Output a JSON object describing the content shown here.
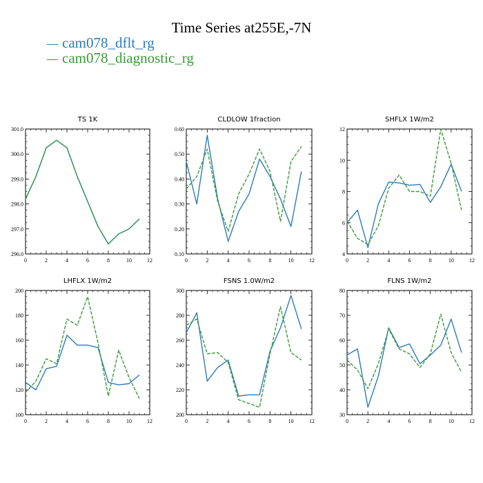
{
  "title": "Time Series at255E,-7N",
  "legend": [
    {
      "name": "cam078_dflt_rg",
      "color": "#2b7bb9"
    },
    {
      "name": "cam078_diagnostic_rg",
      "color": "#3a9a3a"
    }
  ],
  "chart_data": [
    {
      "type": "line",
      "title": "TS   1K",
      "x": [
        0,
        1,
        2,
        3,
        4,
        5,
        6,
        7,
        8,
        9,
        10,
        11
      ],
      "xlim": [
        0,
        12
      ],
      "xticks": [
        "0",
        "2",
        "4",
        "6",
        "8",
        "10",
        "12"
      ],
      "ylim": [
        296.0,
        301.0
      ],
      "yticks": [
        "296.0",
        "297.0",
        "298.0",
        "299.0",
        "300.0",
        "301.0"
      ],
      "series": [
        {
          "name": "cam078_dflt_rg",
          "values": [
            298.2,
            299.1,
            300.25,
            300.55,
            300.25,
            299.1,
            298.1,
            297.1,
            296.4,
            296.8,
            297.0,
            297.4
          ]
        },
        {
          "name": "cam078_diagnostic_rg",
          "values": [
            298.2,
            299.1,
            300.25,
            300.55,
            300.25,
            299.1,
            298.1,
            297.1,
            296.4,
            296.8,
            297.0,
            297.4
          ]
        }
      ]
    },
    {
      "type": "line",
      "title": "CLDLOW   1fraction",
      "x": [
        0,
        1,
        2,
        3,
        4,
        5,
        6,
        7,
        8,
        9,
        10,
        11
      ],
      "xlim": [
        0,
        12
      ],
      "xticks": [
        "0",
        "2",
        "4",
        "6",
        "8",
        "10",
        "12"
      ],
      "ylim": [
        0.1,
        0.6
      ],
      "yticks": [
        "0.10",
        "0.20",
        "0.30",
        "0.40",
        "0.50",
        "0.60"
      ],
      "series": [
        {
          "name": "cam078_dflt_rg",
          "values": [
            0.47,
            0.3,
            0.575,
            0.32,
            0.15,
            0.27,
            0.34,
            0.48,
            0.41,
            0.32,
            0.21,
            0.43
          ]
        },
        {
          "name": "cam078_diagnostic_rg",
          "values": [
            0.36,
            0.41,
            0.52,
            0.31,
            0.19,
            0.34,
            0.42,
            0.52,
            0.43,
            0.23,
            0.47,
            0.53
          ]
        }
      ]
    },
    {
      "type": "line",
      "title": "SHFLX   1W/m2",
      "x": [
        0,
        1,
        2,
        3,
        4,
        5,
        6,
        7,
        8,
        9,
        10,
        11
      ],
      "xlim": [
        0,
        12
      ],
      "xticks": [
        "0",
        "2",
        "4",
        "6",
        "8",
        "10",
        "12"
      ],
      "ylim": [
        4,
        12
      ],
      "yticks": [
        "4",
        "6",
        "8",
        "10",
        "12"
      ],
      "series": [
        {
          "name": "cam078_dflt_rg",
          "values": [
            6.0,
            6.8,
            4.4,
            7.2,
            8.6,
            8.55,
            8.4,
            8.45,
            7.3,
            8.3,
            9.75,
            8.0
          ]
        },
        {
          "name": "cam078_diagnostic_rg",
          "values": [
            6.1,
            5.0,
            4.6,
            5.8,
            8.2,
            9.05,
            8.0,
            8.0,
            7.7,
            12.0,
            9.8,
            6.8
          ]
        }
      ]
    },
    {
      "type": "line",
      "title": "LHFLX   1W/m2",
      "x": [
        0,
        1,
        2,
        3,
        4,
        5,
        6,
        7,
        8,
        9,
        10,
        11
      ],
      "xlim": [
        0,
        12
      ],
      "xticks": [
        "0",
        "2",
        "4",
        "6",
        "8",
        "10",
        "12"
      ],
      "ylim": [
        100,
        200
      ],
      "yticks": [
        "100",
        "120",
        "140",
        "160",
        "180",
        "200"
      ],
      "series": [
        {
          "name": "cam078_dflt_rg",
          "values": [
            126,
            120,
            137,
            139,
            164,
            156,
            156,
            154,
            126,
            124,
            125,
            132
          ]
        },
        {
          "name": "cam078_diagnostic_rg",
          "values": [
            118,
            127,
            145,
            141,
            177,
            172,
            195,
            158,
            115,
            152,
            130,
            113
          ]
        }
      ]
    },
    {
      "type": "line",
      "title": "FSNS   1.0W/m2",
      "x": [
        0,
        1,
        2,
        3,
        4,
        5,
        6,
        7,
        8,
        9,
        10,
        11
      ],
      "xlim": [
        0,
        12
      ],
      "xticks": [
        "0",
        "2",
        "4",
        "6",
        "8",
        "10",
        "12"
      ],
      "ylim": [
        200,
        300
      ],
      "yticks": [
        "200",
        "220",
        "240",
        "260",
        "280",
        "300"
      ],
      "series": [
        {
          "name": "cam078_dflt_rg",
          "values": [
            266,
            282,
            227,
            238,
            244,
            215,
            216,
            216,
            251,
            270,
            296,
            269
          ]
        },
        {
          "name": "cam078_diagnostic_rg",
          "values": [
            272,
            277,
            249,
            250,
            242,
            212,
            209,
            206,
            249,
            287,
            250,
            244
          ]
        }
      ]
    },
    {
      "type": "line",
      "title": "FLNS   1W/m2",
      "x": [
        0,
        1,
        2,
        3,
        4,
        5,
        6,
        7,
        8,
        9,
        10,
        11
      ],
      "xlim": [
        0,
        12
      ],
      "xticks": [
        "0",
        "2",
        "4",
        "6",
        "8",
        "10",
        "12"
      ],
      "ylim": [
        30,
        80
      ],
      "yticks": [
        "30",
        "40",
        "50",
        "60",
        "70",
        "80"
      ],
      "series": [
        {
          "name": "cam078_dflt_rg",
          "values": [
            54,
            56.5,
            33,
            45.5,
            65,
            57,
            58.5,
            50.5,
            54,
            58,
            68.5,
            55
          ]
        },
        {
          "name": "cam078_diagnostic_rg",
          "values": [
            52,
            48,
            40.5,
            50.5,
            64.5,
            56.5,
            54.5,
            49,
            54.5,
            70.5,
            55,
            47
          ]
        }
      ]
    }
  ]
}
